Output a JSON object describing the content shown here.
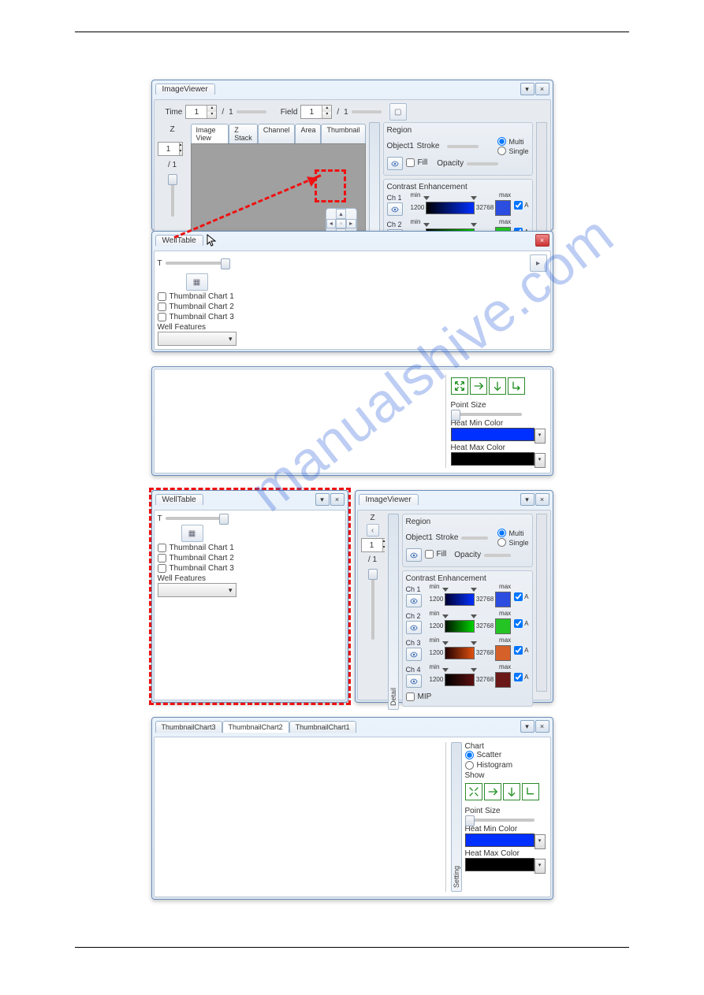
{
  "watermark_text": "manualshive.com",
  "imageViewer": {
    "title": "ImageViewer",
    "time_label": "Time",
    "time_value": "1",
    "time_total": "1",
    "field_label": "Field",
    "field_value": "1",
    "field_total": "1",
    "z_label": "Z",
    "z_value": "1",
    "z_total": "1",
    "tabs": [
      "Image View",
      "Z Stack",
      "Channel",
      "Area",
      "Thumbnail"
    ],
    "detail_label": "Detail",
    "region": {
      "title": "Region",
      "object_label": "Object1",
      "fill_label": "Fill",
      "stroke_label": "Stroke",
      "opacity_label": "Opacity",
      "multi_label": "Multi",
      "single_label": "Single",
      "multi_checked": true
    },
    "contrast": {
      "title": "Contrast Enhancement",
      "auto_label": "Auto",
      "channels": [
        {
          "label": "Ch 1",
          "min": "1200",
          "max": "32768",
          "gradient": "linear-gradient(to right,#000,#0030ff)",
          "endcolor": "#2b4de0"
        },
        {
          "label": "Ch 2",
          "min": "1200",
          "max": "32768",
          "gradient": "linear-gradient(to right,#000,#00d400)",
          "endcolor": "#24c424"
        }
      ]
    }
  },
  "wellTable": {
    "title": "WellTable",
    "t_label": "T",
    "thumb1": "Thumbnail Chart 1",
    "thumb2": "Thumbnail Chart 2",
    "thumb3": "Thumbnail Chart 3",
    "features_label": "Well Features"
  },
  "chartPanel": {
    "tabs": [
      "ThumbnailChart3",
      "ThumbnailChart2",
      "ThumbnailChart1"
    ],
    "chart_label": "Chart",
    "scatter_label": "Scatter",
    "histogram_label": "Histogram",
    "setting_label": "Setting",
    "show_label": "Show",
    "point_size_label": "Point Size",
    "heat_min_label": "Heat Min Color",
    "heat_max_label": "Heat Max Color",
    "heat_min_color": "#0030ff",
    "heat_max_color": "#000000"
  },
  "imageViewer2": {
    "title": "ImageViewer",
    "z_label": "Z",
    "z_value": "1",
    "z_total": "1",
    "mip_label": "MIP",
    "channels": [
      {
        "label": "Ch 1",
        "min": "1200",
        "max": "32768",
        "gradient": "linear-gradient(to right,#003,#0030ff)",
        "endcolor": "#2b4de0"
      },
      {
        "label": "Ch 2",
        "min": "1200",
        "max": "32768",
        "gradient": "linear-gradient(to right,#010,#00d400)",
        "endcolor": "#24c424"
      },
      {
        "label": "Ch 3",
        "min": "1200",
        "max": "32768",
        "gradient": "linear-gradient(to right,#200,#e05010)",
        "endcolor": "#d5602a"
      },
      {
        "label": "Ch 4",
        "min": "1200",
        "max": "32768",
        "gradient": "linear-gradient(to right,#000,#5c1010)",
        "endcolor": "#6a1818"
      }
    ]
  },
  "colors": {
    "hr": "#000000",
    "dashRed": "#e11111"
  }
}
